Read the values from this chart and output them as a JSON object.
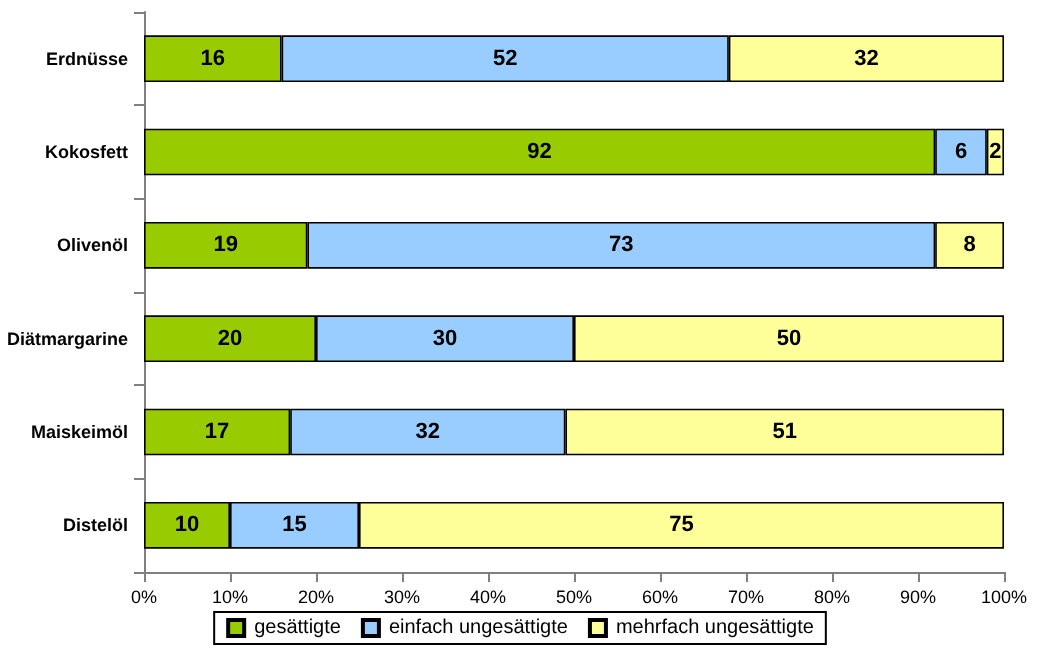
{
  "chart_data": {
    "type": "bar",
    "orientation": "horizontal",
    "stacked": true,
    "data_labels": true,
    "grid": false,
    "legend": "bottom",
    "categories": [
      "Erdnüsse",
      "Kokosfett",
      "Olivenöl",
      "Diätmargarine",
      "Maiskeimöl",
      "Distelöl"
    ],
    "series": [
      {
        "name": "gesättigte",
        "color": "#99cc00",
        "values": [
          16,
          92,
          19,
          20,
          17,
          10
        ]
      },
      {
        "name": "einfach ungesättigte",
        "color": "#99ccff",
        "values": [
          52,
          6,
          73,
          30,
          32,
          15
        ]
      },
      {
        "name": "mehrfach ungesättigte",
        "color": "#ffff99",
        "values": [
          32,
          2,
          8,
          50,
          51,
          75
        ]
      }
    ],
    "xlim": [
      0,
      100
    ],
    "xticks": [
      {
        "value": 0,
        "label": "0%"
      },
      {
        "value": 10,
        "label": "10%"
      },
      {
        "value": 20,
        "label": "20%"
      },
      {
        "value": 30,
        "label": "30%"
      },
      {
        "value": 40,
        "label": "40%"
      },
      {
        "value": 50,
        "label": "50%"
      },
      {
        "value": 60,
        "label": "60%"
      },
      {
        "value": 70,
        "label": "70%"
      },
      {
        "value": 80,
        "label": "80%"
      },
      {
        "value": 90,
        "label": "90%"
      },
      {
        "value": 100,
        "label": "100%"
      }
    ]
  }
}
